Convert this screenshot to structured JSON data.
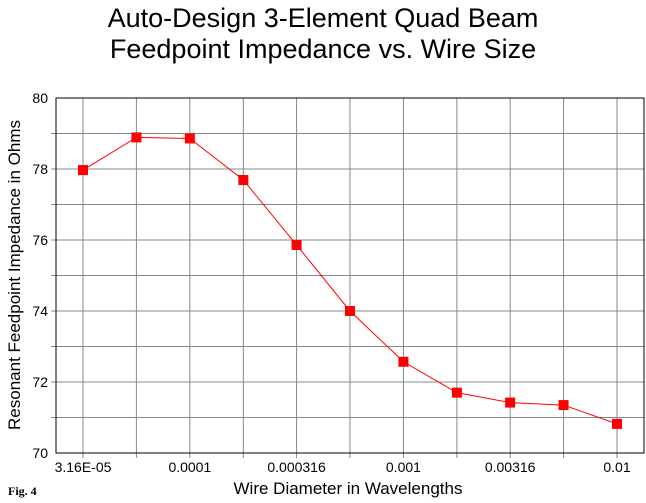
{
  "chart_data": {
    "type": "line",
    "title": "Auto-Design 3-Element Quad Beam",
    "subtitle": "Feedpoint Impedance vs. Wire Size",
    "xlabel": "Wire Diameter in Wavelengths",
    "ylabel": "Resonant Feedpoint Impedance in Ohms",
    "x_tick_labels": [
      "3.16E-05",
      "0.0001",
      "0.000316",
      "0.001",
      "0.00316",
      "0.01"
    ],
    "x_scale": "log",
    "x": [
      3.16e-05,
      5.62e-05,
      0.0001,
      0.000178,
      0.000316,
      0.000562,
      0.001,
      0.00178,
      0.00316,
      0.00562,
      0.01
    ],
    "ylim": [
      70,
      80
    ],
    "y_ticks": [
      70,
      72,
      74,
      76,
      78,
      80
    ],
    "series": [
      {
        "values": [
          77.97,
          78.89,
          78.86,
          77.69,
          75.86,
          74.0,
          72.57,
          71.7,
          71.42,
          71.35,
          70.82
        ]
      }
    ],
    "grid": true,
    "line_color": "#ff0000",
    "marker_color": "#ff0000",
    "figure_label": "Fig. 4"
  }
}
